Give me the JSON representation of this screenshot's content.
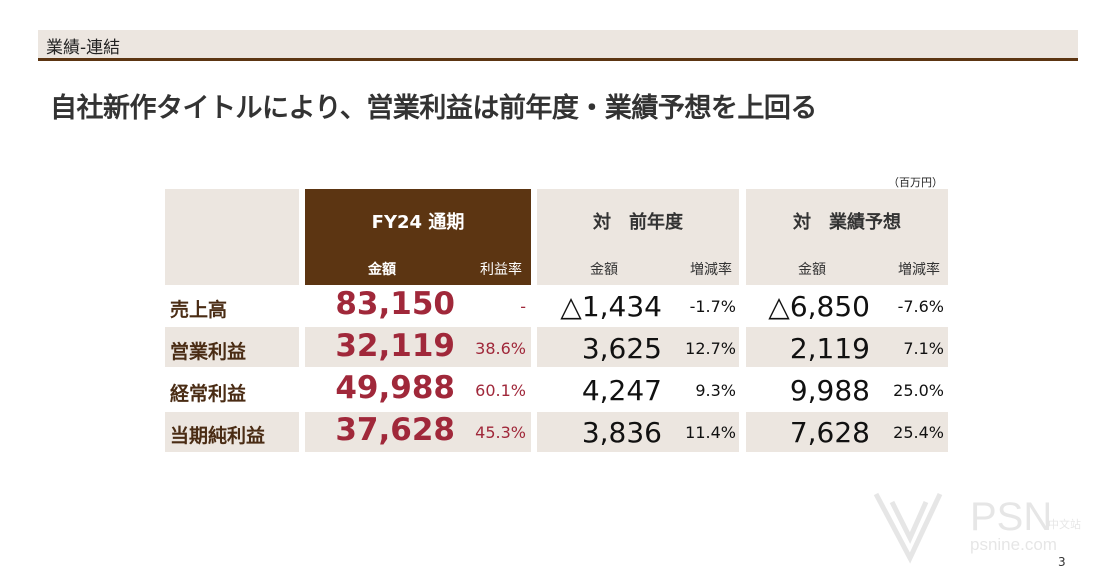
{
  "header": {
    "section": "業績-連結"
  },
  "headline": "自社新作タイトルにより、営業利益は前年度・業績予想を上回る",
  "unit": "（百万円）",
  "table": {
    "groups": {
      "fy": {
        "title": "FY24 通期",
        "col1": "金額",
        "col2": "利益率"
      },
      "prev": {
        "title": "対　前年度",
        "col1": "金額",
        "col2": "増減率"
      },
      "plan": {
        "title": "対　業績予想",
        "col1": "金額",
        "col2": "増減率"
      }
    },
    "rows": [
      {
        "label": "売上高",
        "fy_amount": "83,150",
        "fy_margin": "-",
        "prev_amount": "△1,434",
        "prev_rate": "-1.7%",
        "plan_amount": "△6,850",
        "plan_rate": "-7.6%"
      },
      {
        "label": "営業利益",
        "fy_amount": "32,119",
        "fy_margin": "38.6%",
        "prev_amount": "3,625",
        "prev_rate": "12.7%",
        "plan_amount": "2,119",
        "plan_rate": "7.1%"
      },
      {
        "label": "経常利益",
        "fy_amount": "49,988",
        "fy_margin": "60.1%",
        "prev_amount": "4,247",
        "prev_rate": "9.3%",
        "plan_amount": "9,988",
        "plan_rate": "25.0%"
      },
      {
        "label": "当期純利益",
        "fy_amount": "37,628",
        "fy_margin": "45.3%",
        "prev_amount": "3,836",
        "prev_rate": "11.4%",
        "plan_amount": "7,628",
        "plan_rate": "25.4%"
      }
    ]
  },
  "page_number": "3",
  "watermark": {
    "brand": "PSN",
    "sub": "中文站",
    "url": "psnine.com"
  }
}
